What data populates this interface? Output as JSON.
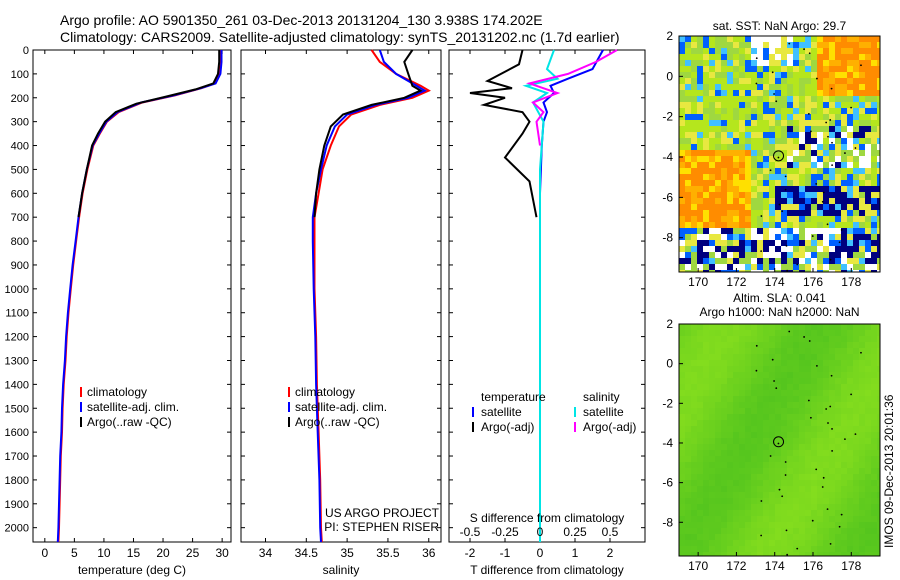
{
  "header": {
    "title_line1": "Argo profile: AO 5901350_261 03-Dec-2013 20131204_130 3.938S 174.202E",
    "title_line2": "Climatology: CARS2009. Satellite-adjusted climatology: synTS_20131202.nc (1.7d earlier)"
  },
  "stamp": "IMOS 09-Dec-2013 20:01:36",
  "colors": {
    "red": "#ff0000",
    "blue": "#0000ff",
    "black": "#000000",
    "cyan": "#00e5e5",
    "magenta": "#ff00ff"
  },
  "chart_data": [
    {
      "type": "line",
      "id": "temperature",
      "xlabel": "temperature (deg C)",
      "ylabel": "",
      "xlim": [
        -2,
        31.5
      ],
      "ylim": [
        2060,
        0
      ],
      "xticks": [
        0,
        5,
        10,
        15,
        20,
        25,
        30
      ],
      "yticks": [
        0,
        100,
        200,
        300,
        400,
        500,
        600,
        700,
        800,
        900,
        1000,
        1100,
        1200,
        1300,
        1400,
        1500,
        1600,
        1700,
        1800,
        1900,
        2000
      ],
      "legend": [
        "climatology",
        "satellite-adj. clim.",
        "Argo(..raw -QC)"
      ],
      "legend_placement": "lower-center",
      "series": [
        {
          "name": "climatology",
          "color": "red",
          "points": [
            [
              29.8,
              0
            ],
            [
              29.8,
              50
            ],
            [
              29.6,
              100
            ],
            [
              28.8,
              140
            ],
            [
              26.5,
              160
            ],
            [
              22,
              190
            ],
            [
              16.5,
              220
            ],
            [
              12.5,
              260
            ],
            [
              10.5,
              300
            ],
            [
              9.3,
              350
            ],
            [
              8.2,
              400
            ],
            [
              7.2,
              500
            ],
            [
              6.4,
              600
            ],
            [
              5.8,
              700
            ],
            [
              5.3,
              800
            ],
            [
              4.8,
              900
            ],
            [
              4.4,
              1000
            ],
            [
              4.0,
              1100
            ],
            [
              3.7,
              1200
            ],
            [
              3.5,
              1300
            ],
            [
              3.2,
              1400
            ],
            [
              3.0,
              1500
            ],
            [
              2.9,
              1600
            ],
            [
              2.7,
              1700
            ],
            [
              2.6,
              1800
            ],
            [
              2.5,
              1900
            ],
            [
              2.4,
              2000
            ],
            [
              2.3,
              2060
            ]
          ]
        },
        {
          "name": "satellite-adj. clim.",
          "color": "blue",
          "points": [
            [
              29.9,
              0
            ],
            [
              29.9,
              50
            ],
            [
              29.7,
              100
            ],
            [
              28.9,
              140
            ],
            [
              26.4,
              160
            ],
            [
              21.8,
              190
            ],
            [
              16.3,
              220
            ],
            [
              12.3,
              260
            ],
            [
              10.4,
              300
            ],
            [
              9.2,
              350
            ],
            [
              8.1,
              400
            ],
            [
              7.1,
              500
            ],
            [
              6.3,
              600
            ],
            [
              5.7,
              700
            ],
            [
              5.2,
              800
            ],
            [
              4.7,
              900
            ],
            [
              4.3,
              1000
            ],
            [
              3.9,
              1100
            ],
            [
              3.6,
              1200
            ],
            [
              3.4,
              1300
            ],
            [
              3.1,
              1400
            ],
            [
              2.9,
              1500
            ],
            [
              2.8,
              1600
            ],
            [
              2.6,
              1700
            ],
            [
              2.5,
              1800
            ],
            [
              2.4,
              1900
            ],
            [
              2.3,
              2000
            ],
            [
              2.2,
              2060
            ]
          ]
        },
        {
          "name": "Argo(..raw -QC)",
          "color": "black",
          "points": [
            [
              29.5,
              0
            ],
            [
              29.5,
              50
            ],
            [
              29.3,
              100
            ],
            [
              28.5,
              140
            ],
            [
              25.5,
              165
            ],
            [
              20.5,
              195
            ],
            [
              15.5,
              225
            ],
            [
              12,
              260
            ],
            [
              10.2,
              300
            ],
            [
              9,
              350
            ],
            [
              8,
              400
            ],
            [
              7.1,
              500
            ],
            [
              6.3,
              600
            ],
            [
              5.7,
              700
            ]
          ]
        }
      ]
    },
    {
      "type": "line",
      "id": "salinity",
      "xlabel": "salinity",
      "ylabel": "",
      "xlim": [
        33.7,
        36.15
      ],
      "ylim": [
        2060,
        0
      ],
      "xticks": [
        34,
        34.5,
        35,
        35.5,
        36
      ],
      "xticklabels": [
        "34",
        "34.5",
        "35",
        "35.5",
        "36"
      ],
      "legend": [
        "climatology",
        "satellite-adj. clim.",
        "Argo(..raw -QC)"
      ],
      "legend_placement": "lower-center",
      "annotation": [
        "US ARGO PROJECT",
        "PI: STEPHEN RISER"
      ],
      "series": [
        {
          "name": "climatology",
          "color": "red",
          "points": [
            [
              35.3,
              0
            ],
            [
              35.4,
              50
            ],
            [
              35.6,
              100
            ],
            [
              35.9,
              150
            ],
            [
              36.0,
              170
            ],
            [
              35.8,
              200
            ],
            [
              35.4,
              230
            ],
            [
              35.05,
              270
            ],
            [
              34.9,
              320
            ],
            [
              34.8,
              400
            ],
            [
              34.7,
              500
            ],
            [
              34.65,
              600
            ],
            [
              34.6,
              700
            ],
            [
              34.6,
              800
            ],
            [
              34.6,
              1000
            ],
            [
              34.62,
              1200
            ],
            [
              34.63,
              1400
            ],
            [
              34.65,
              1600
            ],
            [
              34.67,
              1800
            ],
            [
              34.68,
              2000
            ],
            [
              34.69,
              2060
            ]
          ]
        },
        {
          "name": "satellite-adj. clim.",
          "color": "blue",
          "points": [
            [
              35.4,
              0
            ],
            [
              35.45,
              50
            ],
            [
              35.6,
              100
            ],
            [
              35.85,
              150
            ],
            [
              35.95,
              170
            ],
            [
              35.75,
              200
            ],
            [
              35.35,
              230
            ],
            [
              35.0,
              270
            ],
            [
              34.85,
              320
            ],
            [
              34.75,
              400
            ],
            [
              34.68,
              500
            ],
            [
              34.62,
              600
            ],
            [
              34.58,
              700
            ],
            [
              34.58,
              800
            ],
            [
              34.59,
              1000
            ],
            [
              34.61,
              1200
            ],
            [
              34.62,
              1400
            ],
            [
              34.64,
              1600
            ],
            [
              34.66,
              1800
            ],
            [
              34.67,
              2000
            ],
            [
              34.68,
              2060
            ]
          ]
        },
        {
          "name": "Argo(..raw -QC)",
          "color": "black",
          "points": [
            [
              35.8,
              0
            ],
            [
              35.7,
              50
            ],
            [
              35.75,
              100
            ],
            [
              35.8,
              150
            ],
            [
              35.9,
              170
            ],
            [
              35.7,
              200
            ],
            [
              35.3,
              230
            ],
            [
              34.95,
              270
            ],
            [
              34.8,
              320
            ],
            [
              34.72,
              400
            ],
            [
              34.66,
              500
            ],
            [
              34.62,
              600
            ],
            [
              34.6,
              700
            ]
          ]
        }
      ]
    },
    {
      "type": "line",
      "id": "difference",
      "xlabel": "T difference from climatology",
      "xlabel_top": "S difference from climatology",
      "ylabel": "",
      "xlim": [
        -2.6,
        3
      ],
      "ylim": [
        2060,
        0
      ],
      "xticks": [
        -2,
        -1,
        0,
        1,
        2
      ],
      "xticks_s": [
        -2,
        -1,
        0,
        1,
        2
      ],
      "xticklabels_s": [
        "-0.5",
        "-0.25",
        "0",
        "0.25",
        "0.5"
      ],
      "legend_title_t": "temperature",
      "legend_title_s": "salinity",
      "legend": [
        "satellite",
        "Argo(-adj)",
        "satellite",
        "Argo(-adj)"
      ],
      "legend_placement": "lower-center",
      "series": [
        {
          "name": "satellite",
          "color": "blue",
          "points": [
            [
              1.8,
              0
            ],
            [
              1.5,
              80
            ],
            [
              0.8,
              120
            ],
            [
              0.3,
              150
            ],
            [
              0.4,
              180
            ],
            [
              0.1,
              220
            ],
            [
              0.2,
              260
            ],
            [
              0.1,
              300
            ],
            [
              0.05,
              400
            ],
            [
              0,
              600
            ],
            [
              0,
              2060
            ]
          ]
        },
        {
          "name": "Argo(-adj)",
          "color": "black",
          "points": [
            [
              -0.5,
              0
            ],
            [
              -0.6,
              60
            ],
            [
              -1.5,
              130
            ],
            [
              -0.8,
              160
            ],
            [
              -2,
              180
            ],
            [
              -1,
              200
            ],
            [
              -1.6,
              230
            ],
            [
              -0.5,
              260
            ],
            [
              -0.3,
              300
            ],
            [
              -0.5,
              350
            ],
            [
              -1,
              450
            ],
            [
              -0.3,
              550
            ],
            [
              -0.1,
              700
            ]
          ]
        },
        {
          "name": "satellite",
          "color": "cyan",
          "points": [
            [
              0.4,
              0
            ],
            [
              0.2,
              80
            ],
            [
              0.5,
              120
            ],
            [
              -0.4,
              150
            ],
            [
              0.2,
              180
            ],
            [
              -0.2,
              220
            ],
            [
              0.1,
              300
            ],
            [
              0,
              500
            ],
            [
              0,
              2060
            ]
          ]
        },
        {
          "name": "Argo(-adj)",
          "color": "magenta",
          "points": [
            [
              2.2,
              0
            ],
            [
              1.6,
              50
            ],
            [
              0.8,
              100
            ],
            [
              -0.3,
              140
            ],
            [
              0.5,
              180
            ],
            [
              -0.2,
              220
            ],
            [
              0.1,
              260
            ],
            [
              -0.1,
              300
            ],
            [
              0,
              400
            ]
          ]
        }
      ]
    },
    {
      "type": "heatmap",
      "id": "sst_map",
      "title": "sat. SST: NaN Argo: 29.7",
      "xlim": [
        169,
        179.5
      ],
      "ylim": [
        -9.7,
        2
      ],
      "xticks": [
        170,
        172,
        174,
        176,
        178
      ],
      "yticks": [
        2,
        0,
        -2,
        -4,
        -6,
        -8
      ],
      "marker": [
        174.2,
        -3.94
      ]
    },
    {
      "type": "heatmap",
      "id": "sla_map",
      "title": "Altim. SLA: 0.041",
      "subtitle": "Argo h1000: NaN h2000: NaN",
      "xlim": [
        169,
        179.5
      ],
      "ylim": [
        -9.7,
        2
      ],
      "xticks": [
        170,
        172,
        174,
        176,
        178
      ],
      "yticks": [
        2,
        0,
        -2,
        -4,
        -6,
        -8
      ],
      "marker": [
        174.2,
        -3.94
      ]
    }
  ]
}
